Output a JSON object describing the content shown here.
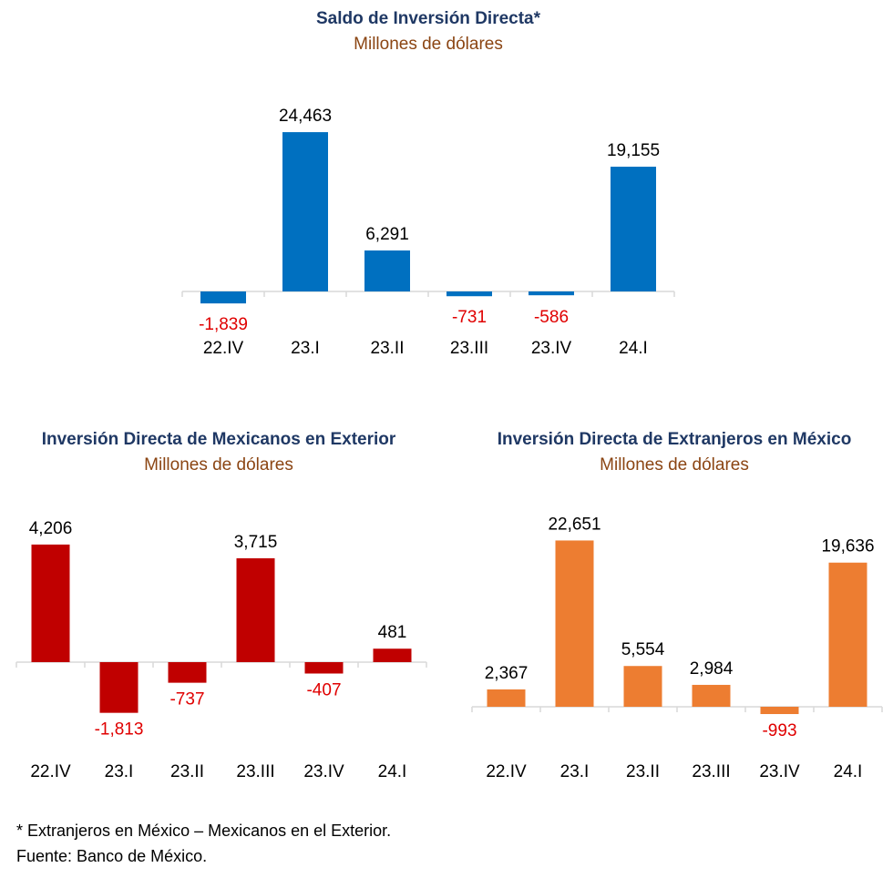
{
  "charts": [
    {
      "chart_data": {
        "type": "bar",
        "title": "Saldo de Inversión Directa*",
        "subtitle": "Millones de dólares",
        "categories": [
          "22.IV",
          "23.I",
          "23.II",
          "23.III",
          "23.IV",
          "24.I"
        ],
        "values": [
          -1839,
          24463,
          6291,
          -731,
          -586,
          19155
        ],
        "labels": [
          "-1,839",
          "24,463",
          "6,291",
          "-731",
          "-586",
          "19,155"
        ],
        "grid": false,
        "legend": "none"
      },
      "colors": {
        "bar": "#0070c0",
        "negative_label": "#e00000"
      }
    },
    {
      "chart_data": {
        "type": "bar",
        "title": "Inversión Directa de Mexicanos en Exterior",
        "subtitle": "Millones de dólares",
        "categories": [
          "22.IV",
          "23.I",
          "23.II",
          "23.III",
          "23.IV",
          "24.I"
        ],
        "values": [
          4206,
          -1813,
          -737,
          3715,
          -407,
          481
        ],
        "labels": [
          "4,206",
          "-1,813",
          "-737",
          "3,715",
          "-407",
          "481"
        ],
        "grid": false,
        "legend": "none"
      },
      "colors": {
        "bar": "#c00000",
        "negative_label": "#e00000"
      }
    },
    {
      "chart_data": {
        "type": "bar",
        "title": "Inversión Directa de Extranjeros en México",
        "subtitle": "Millones de dólares",
        "categories": [
          "22.IV",
          "23.I",
          "23.II",
          "23.III",
          "23.IV",
          "24.I"
        ],
        "values": [
          2367,
          22651,
          5554,
          2984,
          -993,
          19636
        ],
        "labels": [
          "2,367",
          "22,651",
          "5,554",
          "2,984",
          "-993",
          "19,636"
        ],
        "grid": false,
        "legend": "none"
      },
      "colors": {
        "bar": "#ed7d31",
        "negative_label": "#e00000"
      }
    }
  ],
  "footnotes": {
    "note": "* Extranjeros en México – Mexicanos en el Exterior.",
    "source": "Fuente:  Banco de México."
  }
}
